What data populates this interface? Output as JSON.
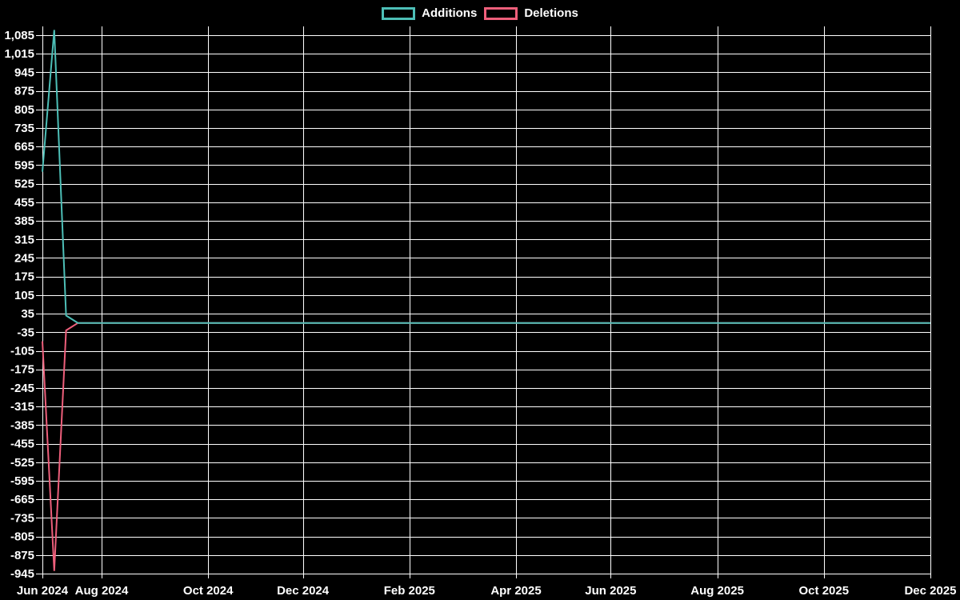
{
  "legend": {
    "items": [
      {
        "label": "Additions",
        "color": "#4DBFB7"
      },
      {
        "label": "Deletions",
        "color": "#EE5F7B"
      }
    ]
  },
  "colors": {
    "background": "#000000",
    "grid": "#FFFFFF",
    "text": "#FFFFFF",
    "additions": "#4DBFB7",
    "deletions": "#EE5F7B"
  },
  "chart_data": {
    "type": "line",
    "title": "",
    "xlabel": "",
    "ylabel": "",
    "grid": true,
    "legend_position": "top-center",
    "y_axis_range": [
      -945,
      1085
    ],
    "y_tick_step": 70,
    "weeks_total": 76,
    "x_ticks": [
      {
        "label": "Jun 2024",
        "week": 0
      },
      {
        "label": "Aug 2024",
        "week": 5
      },
      {
        "label": "Oct 2024",
        "week": 14
      },
      {
        "label": "Dec 2024",
        "week": 22
      },
      {
        "label": "Feb 2025",
        "week": 31
      },
      {
        "label": "Apr 2025",
        "week": 40
      },
      {
        "label": "Jun 2025",
        "week": 48
      },
      {
        "label": "Aug 2025",
        "week": 57
      },
      {
        "label": "Oct 2025",
        "week": 66
      },
      {
        "label": "Dec 2025",
        "week": 75
      }
    ],
    "y_tick_values": [
      1085,
      1015,
      945,
      875,
      805,
      735,
      665,
      595,
      525,
      455,
      385,
      315,
      245,
      175,
      105,
      35,
      -35,
      -105,
      -175,
      -245,
      -315,
      -385,
      -455,
      -525,
      -595,
      -665,
      -735,
      -805,
      -875,
      -945
    ],
    "y_tick_labels": [
      "1,085",
      "1,015",
      "945",
      "875",
      "805",
      "735",
      "665",
      "595",
      "525",
      "455",
      "385",
      "315",
      "245",
      "175",
      "105",
      "35",
      "-35",
      "-105",
      "-175",
      "-245",
      "-315",
      "-385",
      "-455",
      "-525",
      "-595",
      "-665",
      "-735",
      "-805",
      "-875",
      "-945"
    ],
    "series": [
      {
        "name": "Additions",
        "color": "#4DBFB7",
        "values": [
          570,
          1105,
          28,
          0,
          0,
          0,
          0,
          0,
          0,
          0,
          0,
          0,
          0,
          0,
          0,
          0,
          0,
          0,
          0,
          0,
          0,
          0,
          0,
          0,
          0,
          0,
          0,
          0,
          0,
          0,
          0,
          0,
          0,
          0,
          0,
          0,
          0,
          0,
          0,
          0,
          0,
          0,
          0,
          0,
          0,
          0,
          0,
          0,
          0,
          0,
          0,
          0,
          0,
          0,
          0,
          0,
          0,
          0,
          0,
          0,
          0,
          0,
          0,
          0,
          0,
          0,
          0,
          0,
          0,
          0,
          0,
          0,
          0,
          0,
          0,
          0
        ]
      },
      {
        "name": "Deletions",
        "color": "#EE5F7B",
        "values": [
          -69,
          -935,
          -28,
          0,
          0,
          0,
          0,
          0,
          0,
          0,
          0,
          0,
          0,
          0,
          0,
          0,
          0,
          0,
          0,
          0,
          0,
          0,
          0,
          0,
          0,
          0,
          0,
          0,
          0,
          0,
          0,
          0,
          0,
          0,
          0,
          0,
          0,
          0,
          0,
          0,
          0,
          0,
          0,
          0,
          0,
          0,
          0,
          0,
          0,
          0,
          0,
          0,
          0,
          0,
          0,
          0,
          0,
          0,
          0,
          0,
          0,
          0,
          0,
          0,
          0,
          0,
          0,
          0,
          0,
          0,
          0,
          0,
          0,
          0,
          0,
          0
        ]
      }
    ]
  }
}
